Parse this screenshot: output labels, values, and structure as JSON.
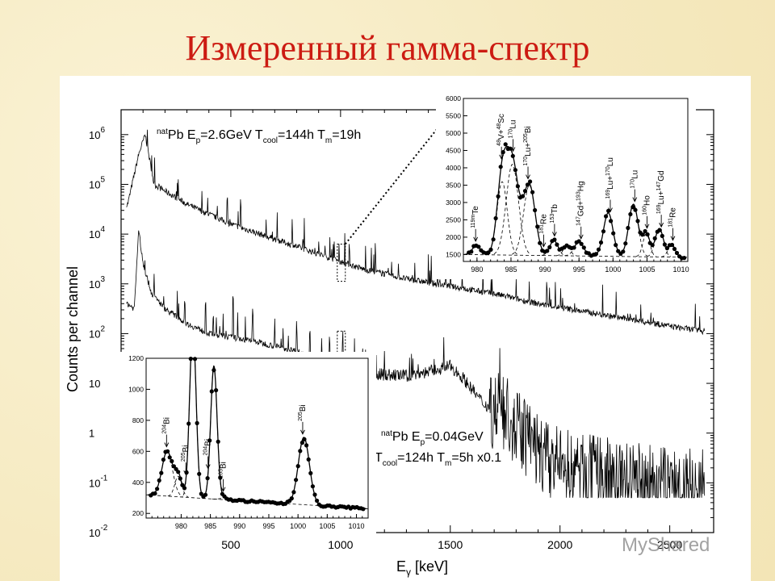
{
  "slide_title": "Измеренный гамма-спектр",
  "watermark": "MyShared",
  "chart_data": [
    {
      "type": "line",
      "name": "main-spectrum",
      "xlabel_main": "E",
      "xlabel_sub": "γ",
      "xlabel_unit": " [keV]",
      "ylabel": "Counts per channel",
      "yscale": "log",
      "xlim": [
        0,
        2700
      ],
      "ylim_exp": [
        -2,
        6.5
      ],
      "x_ticks": [
        500,
        1000,
        1500,
        2000,
        2500
      ],
      "y_ticks": [
        {
          "exp": 6,
          "label": "10",
          "sup": "6"
        },
        {
          "exp": 5,
          "label": "10",
          "sup": "5"
        },
        {
          "exp": 4,
          "label": "10",
          "sup": "4"
        },
        {
          "exp": 3,
          "label": "10",
          "sup": "3"
        },
        {
          "exp": 2,
          "label": "10",
          "sup": "2"
        },
        {
          "exp": 1,
          "label": "10",
          "sup": ""
        },
        {
          "exp": 0,
          "label": "1",
          "sup": ""
        },
        {
          "exp": -1,
          "label": "10",
          "sup": "-1"
        },
        {
          "exp": -2,
          "label": "10",
          "sup": "-2"
        }
      ],
      "annotations": [
        {
          "sup": "nat",
          "text": "Pb E",
          "sub": "p",
          "rest": "=2.6GeV T",
          "sub2": "cool",
          "rest2": "=144h T",
          "sub3": "m",
          "rest3": "=19h"
        },
        {
          "sup": "nat",
          "text": "Pb E",
          "sub": "p",
          "rest": "=0.04GeV"
        },
        {
          "text": "T",
          "sub": "cool",
          "rest": "=124h T",
          "sub2": "m",
          "rest2": "=5h x0.1"
        }
      ],
      "series": [
        {
          "envelope_log": [
            [
              30,
              4.6
            ],
            [
              80,
              5.6
            ],
            [
              110,
              6.0
            ],
            [
              150,
              5.0
            ],
            [
              300,
              4.6
            ],
            [
              500,
              4.2
            ],
            [
              700,
              3.9
            ],
            [
              900,
              3.6
            ],
            [
              1100,
              3.3
            ],
            [
              1300,
              3.1
            ],
            [
              1500,
              2.95
            ],
            [
              1700,
              2.8
            ],
            [
              1900,
              2.6
            ],
            [
              2100,
              2.45
            ],
            [
              2300,
              2.3
            ],
            [
              2500,
              2.15
            ],
            [
              2650,
              2.05
            ]
          ],
          "peaks": [
            [
              120,
              6.2
            ],
            [
              260,
              5.2
            ],
            [
              330,
              4.6
            ],
            [
              400,
              4.3
            ],
            [
              470,
              4.3
            ],
            [
              545,
              4.9
            ],
            [
              620,
              4.1
            ],
            [
              690,
              4.2
            ],
            [
              780,
              4.4
            ],
            [
              830,
              3.9
            ],
            [
              900,
              4.0
            ],
            [
              960,
              3.7
            ],
            [
              1040,
              4.0
            ],
            [
              1160,
              3.6
            ],
            [
              1260,
              3.3
            ],
            [
              1400,
              3.2
            ],
            [
              1480,
              3.4
            ],
            [
              1560,
              3.1
            ],
            [
              1760,
              3.0
            ],
            [
              1800,
              3.2
            ],
            [
              1980,
              2.6
            ],
            [
              2200,
              2.6
            ],
            [
              2320,
              2.5
            ],
            [
              2450,
              2.4
            ]
          ]
        },
        {
          "envelope_log": [
            [
              30,
              2.6
            ],
            [
              60,
              2.5
            ],
            [
              80,
              4.1
            ],
            [
              100,
              3.4
            ],
            [
              140,
              2.8
            ],
            [
              200,
              2.5
            ],
            [
              300,
              2.2
            ],
            [
              400,
              2.0
            ],
            [
              600,
              1.85
            ],
            [
              800,
              1.65
            ],
            [
              950,
              1.4
            ],
            [
              1100,
              1.2
            ],
            [
              1300,
              1.15
            ],
            [
              1420,
              1.25
            ],
            [
              1500,
              1.35
            ],
            [
              1560,
              1.1
            ],
            [
              1650,
              0.6
            ],
            [
              1750,
              0.3
            ],
            [
              1850,
              -0.1
            ],
            [
              1950,
              -0.6
            ],
            [
              2100,
              -0.8
            ],
            [
              2300,
              -0.95
            ],
            [
              2500,
              -1.05
            ],
            [
              2650,
              -1.1
            ]
          ],
          "peaks": [
            [
              150,
              3.3
            ],
            [
              290,
              2.9
            ],
            [
              420,
              2.6
            ],
            [
              510,
              3.0
            ],
            [
              600,
              2.7
            ],
            [
              700,
              2.4
            ],
            [
              800,
              2.4
            ],
            [
              860,
              2.3
            ],
            [
              950,
              2.1
            ],
            [
              1010,
              2.2
            ],
            [
              1100,
              1.9
            ],
            [
              1200,
              1.7
            ],
            [
              1330,
              1.6
            ],
            [
              1720,
              1.2
            ],
            [
              1760,
              1.3
            ],
            [
              1850,
              0.6
            ]
          ]
        }
      ]
    },
    {
      "type": "line",
      "name": "inset-top",
      "xlim": [
        978,
        1011
      ],
      "ylim": [
        1300,
        6000
      ],
      "x_ticks": [
        980,
        985,
        990,
        995,
        1000,
        1005,
        1010
      ],
      "y_ticks": [
        1500,
        2000,
        2500,
        3000,
        3500,
        4000,
        4500,
        5000,
        5500,
        6000
      ],
      "labels": [
        {
          "x": 979.8,
          "pre": "119m",
          "name": "Te"
        },
        {
          "x": 983.6,
          "pre": "48",
          "name": "V+",
          "pre2": "48",
          "name2": "Sc"
        },
        {
          "x": 985.3,
          "pre": "170",
          "name": "Lu"
        },
        {
          "x": 987.5,
          "pre": "170",
          "name": "Lu+",
          "pre2": "205",
          "name2": "Bi"
        },
        {
          "x": 989.8,
          "pre": "181",
          "name": "Re"
        },
        {
          "x": 991.4,
          "pre": "153",
          "name": "Tb"
        },
        {
          "x": 995.3,
          "pre": "147",
          "name": "Gd+",
          "pre2": "193",
          "name2": "Hg"
        },
        {
          "x": 999.6,
          "pre": "169",
          "name": "Lu+",
          "pre2": "170",
          "name2": "Lu"
        },
        {
          "x": 1003.2,
          "pre": "170",
          "name": "Lu"
        },
        {
          "x": 1005.0,
          "pre": "160",
          "name": "Ho"
        },
        {
          "x": 1007.1,
          "pre": "169",
          "name": "Lu+",
          "pre2": "147",
          "name2": "Gd"
        },
        {
          "x": 1008.8,
          "pre": "181",
          "name": "Re"
        }
      ],
      "peaks": [
        [
          979.9,
          1750,
          0.6
        ],
        [
          983.7,
          3600,
          0.75
        ],
        [
          985.2,
          4100,
          0.9
        ],
        [
          987.7,
          3500,
          0.85
        ],
        [
          991.3,
          1900,
          0.6
        ],
        [
          993.2,
          1750,
          0.5
        ],
        [
          995.0,
          1850,
          0.7
        ],
        [
          999.3,
          2700,
          0.7
        ],
        [
          1003.0,
          2950,
          0.7
        ],
        [
          1004.9,
          2100,
          0.5
        ],
        [
          1006.8,
          2250,
          0.6
        ],
        [
          1008.6,
          1800,
          0.5
        ]
      ],
      "background": [
        [
          978,
          1500
        ],
        [
          1011,
          1420
        ]
      ]
    },
    {
      "type": "line",
      "name": "inset-bottom",
      "xlim": [
        974,
        1012
      ],
      "ylim": [
        170,
        1200
      ],
      "x_ticks": [
        980,
        985,
        990,
        995,
        1000,
        1005,
        1010
      ],
      "y_ticks": [
        200,
        400,
        600,
        800,
        1000,
        1200
      ],
      "labels": [
        {
          "x": 977.5,
          "pre": "204",
          "name": "Bi"
        },
        {
          "x": 980.8,
          "pre": "205",
          "name": "Bi"
        },
        {
          "x": 984.6,
          "pre": "204",
          "name": "Bi"
        },
        {
          "x": 987.2,
          "pre": "205",
          "name": "Bi"
        },
        {
          "x": 1000.8,
          "pre": "205",
          "name": "Bi"
        }
      ],
      "peaks": [
        [
          977.6,
          600,
          0.9
        ],
        [
          979.5,
          440,
          0.6
        ],
        [
          982.0,
          1400,
          0.55
        ],
        [
          985.6,
          1150,
          0.55
        ],
        [
          987.4,
          300,
          0.7
        ],
        [
          1001.0,
          690,
          0.95
        ]
      ],
      "background": [
        [
          974,
          320
        ],
        [
          1012,
          230
        ]
      ]
    }
  ]
}
